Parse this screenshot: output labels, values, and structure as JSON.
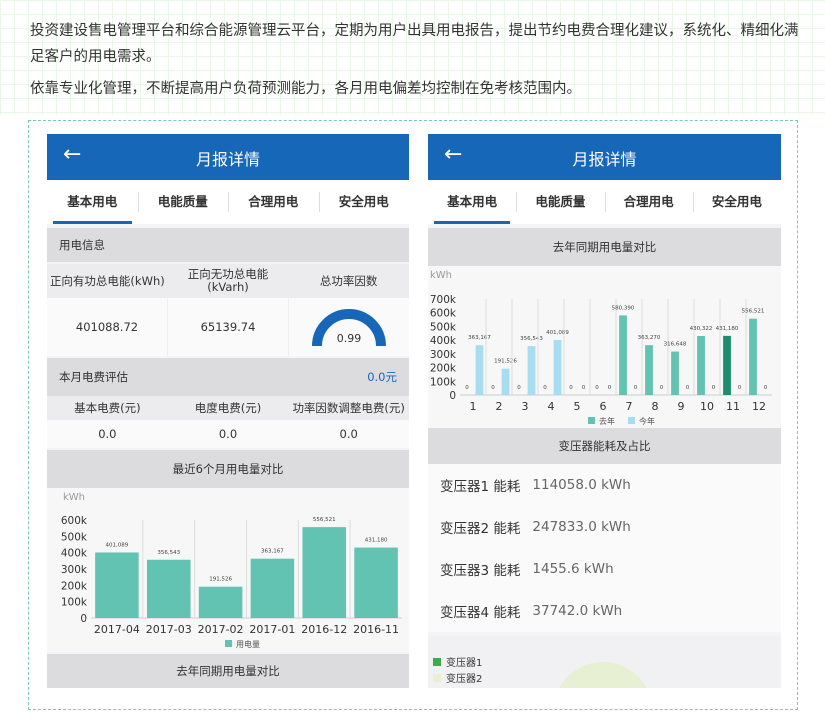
{
  "intro": [
    "投资建设售电管理平台和综合能源管理云平台，定期为用户出具用电报告，提出节约电费合理化建议，系统化、精细化满足客户的用电需求。",
    "依靠专业化管理，不断提高用户负荷预测能力，各月用电偏差均控制在免考核范围内。"
  ],
  "colors": {
    "header": "#1767b8",
    "teal": "#63c3b3",
    "light_blue": "#a8dcf0",
    "dark_teal": "#1e8c6e"
  },
  "left": {
    "title": "月报详情",
    "back_icon": "←",
    "tabs": [
      "基本用电",
      "电能质量",
      "合理用电",
      "安全用电"
    ],
    "info_section": "用电信息",
    "info_headers": [
      "正向有功总电能(kWh)",
      "正向无功总电能\n(kVarh)",
      "总功率因数"
    ],
    "info_values": [
      "401088.72",
      "65139.74"
    ],
    "power_factor": "0.99",
    "fee_section": "本月电费评估",
    "fee_total": "0.0元",
    "fee_headers": [
      "基本电费(元)",
      "电度电费(元)",
      "功率因数调整电费(元)"
    ],
    "fee_values": [
      "0.0",
      "0.0",
      "0.0"
    ],
    "chart_section": "最近6个月用电量对比",
    "bottom_section": "去年同期用电量对比"
  },
  "right": {
    "title": "月报详情",
    "back_icon": "←",
    "tabs": [
      "基本用电",
      "电能质量",
      "合理用电",
      "安全用电"
    ],
    "chart_section": "去年同期用电量对比",
    "energy_section": "变压器能耗及占比",
    "transformers": [
      {
        "name": "变压器1 能耗",
        "value": "114058.0 kWh"
      },
      {
        "name": "变压器2 能耗",
        "value": "247833.0 kWh"
      },
      {
        "name": "变压器3 能耗",
        "value": "1455.6 kWh"
      },
      {
        "name": "变压器4 能耗",
        "value": "37742.0 kWh"
      }
    ],
    "pie_legend": [
      "变压器1",
      "变压器2"
    ]
  },
  "chart_data": [
    {
      "type": "bar",
      "unit": "kWh",
      "categories": [
        "2017-04",
        "2017-03",
        "2017-02",
        "2017-01",
        "2016-12",
        "2016-11"
      ],
      "series": [
        {
          "name": "用电量",
          "values": [
            401089,
            356543,
            191526,
            363167,
            556521,
            431180
          ],
          "labels": [
            "401,089",
            "356,543",
            "191,526",
            "363,167",
            "556,521",
            "431,180"
          ]
        }
      ],
      "ylim": [
        0,
        600000
      ],
      "yticks": [
        "0",
        "100k",
        "200k",
        "300k",
        "400k",
        "500k",
        "600k"
      ],
      "legend": "bottom"
    },
    {
      "type": "bar",
      "unit": "kWh",
      "categories": [
        "1",
        "2",
        "3",
        "4",
        "5",
        "6",
        "7",
        "8",
        "9",
        "10",
        "11",
        "12"
      ],
      "series": [
        {
          "name": "去年",
          "values": [
            0,
            0,
            0,
            0,
            0,
            0,
            580390,
            363270,
            316648,
            430322,
            431180,
            556521
          ],
          "labels": [
            "0",
            "0",
            "0",
            "0",
            "0",
            "0",
            "580,390",
            "363,270",
            "316,648",
            "430,322",
            "431,180",
            "556,521"
          ]
        },
        {
          "name": "今年",
          "values": [
            363167,
            191526,
            356543,
            401089,
            0,
            0,
            0,
            0,
            0,
            0,
            0,
            0
          ],
          "labels": [
            "363,167",
            "191,526",
            "356,543",
            "401,089",
            "0",
            "0",
            "0",
            "0",
            "0",
            "0",
            "0",
            "0"
          ]
        }
      ],
      "ylim": [
        0,
        700000
      ],
      "yticks": [
        "0",
        "100k",
        "200k",
        "300k",
        "400k",
        "500k",
        "600k",
        "700k"
      ],
      "legend": "bottom"
    }
  ]
}
